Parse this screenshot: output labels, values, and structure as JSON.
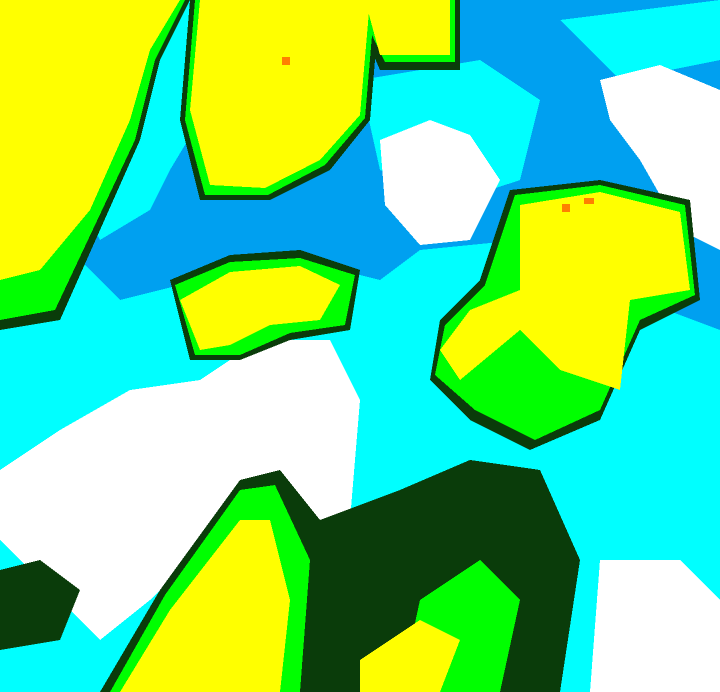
{
  "map": {
    "palette": {
      "background": "#00a0f0",
      "cyan": "#00ffff",
      "white": "#ffffff",
      "dark_green": "#0a3c0a",
      "green": "#00ff00",
      "yellow": "#ffff00",
      "orange": "#ff8000"
    }
  }
}
